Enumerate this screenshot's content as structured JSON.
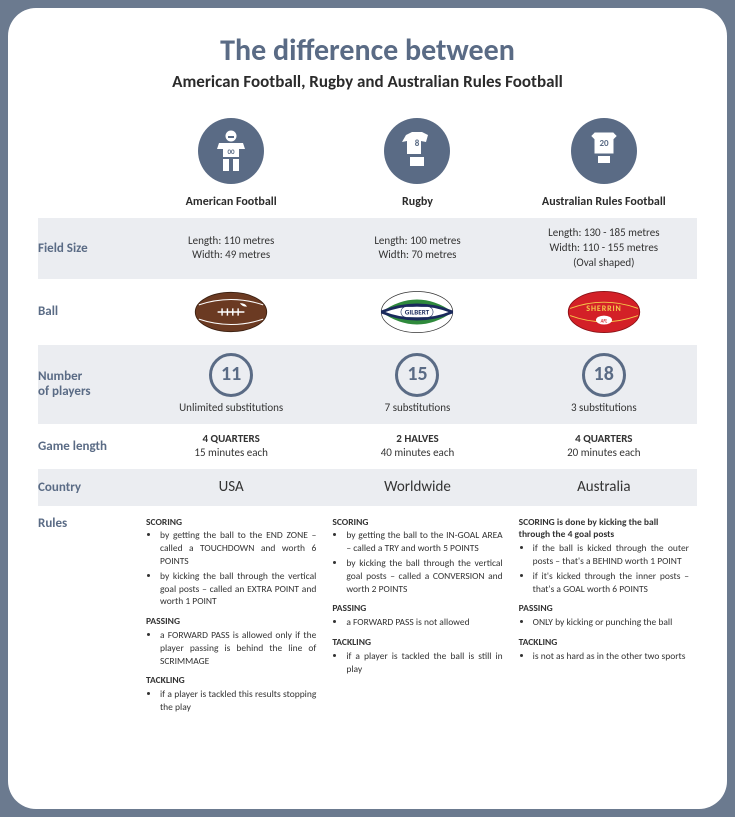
{
  "title": "The difference between",
  "subtitle": "American Football, Rugby and Australian Rules Football",
  "colors": {
    "accent": "#5a6b85",
    "band": "#ebedf1",
    "card_bg": "#ffffff",
    "page_bg": "#6b7a8f",
    "ball_american": "#6b3a22",
    "ball_rugby_green": "#2f8a3c",
    "ball_rugby_navy": "#1a2a5c",
    "ball_afl": "#d32027"
  },
  "columns": [
    {
      "name": "American Football",
      "jersey_number": "00"
    },
    {
      "name": "Rugby",
      "jersey_number": "8"
    },
    {
      "name": "Australian Rules Football",
      "jersey_number": "20"
    }
  ],
  "rows": {
    "field_size": {
      "label": "Field Size",
      "cells": [
        {
          "length": "Length: 110 metres",
          "width": "Width: 49 metres",
          "note": ""
        },
        {
          "length": "Length: 100 metres",
          "width": "Width: 70 metres",
          "note": ""
        },
        {
          "length": "Length: 130 - 185 metres",
          "width": "Width: 110 - 155 metres",
          "note": "(Oval shaped)"
        }
      ]
    },
    "ball": {
      "label": "Ball"
    },
    "players": {
      "label": "Number\nof players",
      "cells": [
        {
          "count": "11",
          "subs": "Unlimited substitutions"
        },
        {
          "count": "15",
          "subs": "7 substitutions"
        },
        {
          "count": "18",
          "subs": "3 substitutions"
        }
      ]
    },
    "game_length": {
      "label": "Game length",
      "cells": [
        {
          "periods": "4 QUARTERS",
          "each": "15 minutes each"
        },
        {
          "periods": "2 HALVES",
          "each": "40 minutes each"
        },
        {
          "periods": "4 QUARTERS",
          "each": "20 minutes each"
        }
      ]
    },
    "country": {
      "label": "Country",
      "cells": [
        "USA",
        "Worldwide",
        "Australia"
      ]
    },
    "rules": {
      "label": "Rules",
      "cells": [
        {
          "scoring_intro": "",
          "scoring": [
            "by getting the ball to the END ZONE – called a TOUCHDOWN and worth 6 POINTS",
            "by kicking the ball through the vertical goal posts – called an EXTRA POINT and worth 1 POINT"
          ],
          "passing": [
            "a FORWARD PASS is allowed only if the player passing is behind the line of SCRIMMAGE"
          ],
          "tackling": [
            "if a player is tackled this results stopping the play"
          ]
        },
        {
          "scoring_intro": "",
          "scoring": [
            "by getting the ball to the IN-GOAL AREA – called a TRY and worth 5 POINTS",
            "by kicking the ball through the vertical goal posts – called a CONVERSION and worth 2 POINTS"
          ],
          "passing": [
            "a FORWARD PASS is not allowed"
          ],
          "tackling": [
            "if a player is tackled the ball is still in play"
          ]
        },
        {
          "scoring_intro": "is done by kicking the ball through the 4 goal posts",
          "scoring": [
            "if the ball is kicked through the outer posts – that's a BEHIND worth 1 POINT",
            "if it's kicked through the inner posts – that's a GOAL worth 6 POINTS"
          ],
          "passing": [
            "ONLY by kicking or punching the ball"
          ],
          "tackling": [
            "is not as hard as in the other two sports"
          ]
        }
      ]
    }
  },
  "labels": {
    "scoring": "SCORING",
    "passing": "PASSING",
    "tackling": "TACKLING"
  }
}
